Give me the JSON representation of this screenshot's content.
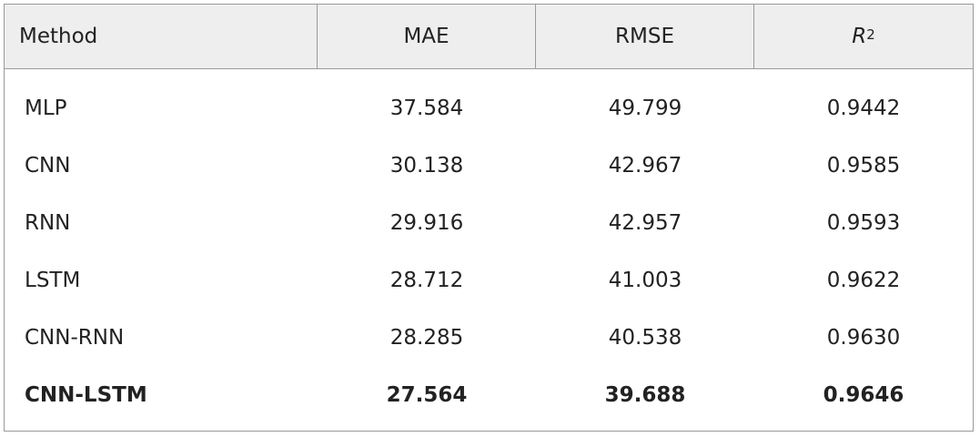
{
  "table": {
    "headers": {
      "method": "Method",
      "mae": "MAE",
      "rmse": "RMSE",
      "r2_base": "R",
      "r2_sup": "2"
    },
    "rows": [
      {
        "method": "MLP",
        "mae": "37.584",
        "rmse": "49.799",
        "r2": "0.9442",
        "bold": false
      },
      {
        "method": "CNN",
        "mae": "30.138",
        "rmse": "42.967",
        "r2": "0.9585",
        "bold": false
      },
      {
        "method": "RNN",
        "mae": "29.916",
        "rmse": "42.957",
        "r2": "0.9593",
        "bold": false
      },
      {
        "method": "LSTM",
        "mae": "28.712",
        "rmse": "41.003",
        "r2": "0.9622",
        "bold": false
      },
      {
        "method": "CNN-RNN",
        "mae": "28.285",
        "rmse": "40.538",
        "r2": "0.9630",
        "bold": false
      },
      {
        "method": "CNN-LSTM",
        "mae": "27.564",
        "rmse": "39.688",
        "r2": "0.9646",
        "bold": true
      }
    ]
  }
}
